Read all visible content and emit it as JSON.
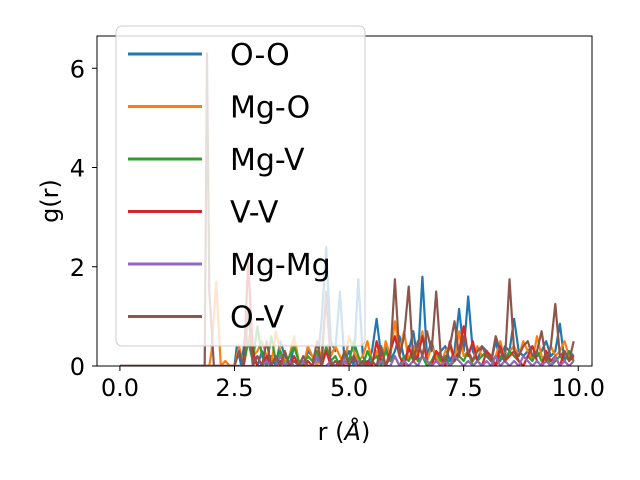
{
  "chart_data": {
    "type": "line",
    "xlabel": "r (",
    "xlabel_unit": "Å",
    "xlabel_close": ")",
    "ylabel": "g(r)",
    "xlim": [
      -0.5,
      10.3
    ],
    "ylim": [
      0,
      6.65
    ],
    "xticks": [
      0.0,
      2.5,
      5.0,
      7.5,
      10.0
    ],
    "xtick_labels": [
      "0.0",
      "2.5",
      "5.0",
      "7.5",
      "10.0"
    ],
    "yticks": [
      0,
      2,
      4,
      6
    ],
    "ytick_labels": [
      "0",
      "2",
      "4",
      "6"
    ],
    "grid": false,
    "legend_placement": "upper-left",
    "series": [
      {
        "name": "O-O",
        "color": "#1f77b4",
        "x": [
          0.0,
          2.5,
          2.55,
          2.65,
          2.8,
          2.9,
          3.0,
          3.1,
          3.2,
          3.3,
          3.4,
          3.5,
          3.6,
          3.7,
          3.8,
          3.9,
          4.0,
          4.1,
          4.2,
          4.3,
          4.4,
          4.5,
          4.6,
          4.7,
          4.8,
          4.9,
          5.0,
          5.1,
          5.2,
          5.3,
          5.4,
          5.5,
          5.6,
          5.7,
          5.8,
          5.9,
          6.0,
          6.1,
          6.2,
          6.3,
          6.4,
          6.5,
          6.6,
          6.7,
          6.8,
          6.9,
          7.0,
          7.1,
          7.2,
          7.3,
          7.4,
          7.5,
          7.6,
          7.7,
          7.8,
          7.9,
          8.0,
          8.1,
          8.2,
          8.3,
          8.4,
          8.5,
          8.6,
          8.7,
          8.8,
          8.9,
          9.0,
          9.1,
          9.2,
          9.3,
          9.4,
          9.5,
          9.6,
          9.7,
          9.8,
          9.9
        ],
        "y": [
          0.0,
          0.0,
          0.4,
          0.0,
          1.1,
          0.2,
          0.0,
          0.3,
          0.0,
          0.2,
          0.0,
          0.5,
          0.2,
          0.0,
          0.4,
          0.1,
          0.0,
          0.3,
          0.2,
          0.0,
          0.9,
          2.4,
          0.5,
          0.3,
          1.5,
          0.1,
          0.3,
          0.0,
          1.75,
          0.2,
          0.0,
          0.3,
          0.95,
          0.2,
          0.4,
          0.1,
          0.3,
          0.6,
          0.15,
          0.3,
          0.7,
          0.1,
          1.8,
          0.2,
          0.5,
          0.1,
          0.3,
          0.4,
          0.1,
          0.3,
          1.15,
          0.3,
          1.4,
          0.3,
          0.1,
          0.4,
          0.3,
          0.1,
          0.5,
          0.1,
          0.4,
          0.3,
          0.95,
          0.3,
          0.2,
          0.3,
          0.4,
          0.2,
          0.3,
          0.5,
          0.2,
          0.3,
          0.85,
          0.1,
          0.3,
          0.2
        ]
      },
      {
        "name": "Mg-O",
        "color": "#ff7f0e",
        "x": [
          0.0,
          1.95,
          2.0,
          2.1,
          2.2,
          2.3,
          2.4,
          2.5,
          2.6,
          2.7,
          2.8,
          2.9,
          3.0,
          3.1,
          3.2,
          3.3,
          3.4,
          3.5,
          3.6,
          3.7,
          3.8,
          3.9,
          4.0,
          4.1,
          4.2,
          4.3,
          4.4,
          4.5,
          4.6,
          4.7,
          4.8,
          4.9,
          5.0,
          5.1,
          5.2,
          5.3,
          5.4,
          5.5,
          5.6,
          5.7,
          5.8,
          5.9,
          6.0,
          6.1,
          6.2,
          6.3,
          6.4,
          6.5,
          6.6,
          6.7,
          6.8,
          6.9,
          7.0,
          7.1,
          7.2,
          7.3,
          7.4,
          7.5,
          7.6,
          7.7,
          7.8,
          7.9,
          8.0,
          8.1,
          8.2,
          8.3,
          8.4,
          8.5,
          8.6,
          8.7,
          8.8,
          8.9,
          9.0,
          9.1,
          9.2,
          9.3,
          9.4,
          9.5,
          9.6,
          9.7,
          9.8,
          9.9
        ],
        "y": [
          0.0,
          0.0,
          0.3,
          1.7,
          0.0,
          0.1,
          0.0,
          0.0,
          0.4,
          0.0,
          0.6,
          0.2,
          0.3,
          0.5,
          0.2,
          0.0,
          0.7,
          0.3,
          0.1,
          0.2,
          0.6,
          0.1,
          0.0,
          0.4,
          0.2,
          0.0,
          0.3,
          1.3,
          0.2,
          0.4,
          0.2,
          0.0,
          0.6,
          0.3,
          0.1,
          0.2,
          0.5,
          0.1,
          0.3,
          0.0,
          0.5,
          0.2,
          0.9,
          0.3,
          0.7,
          0.1,
          0.4,
          0.2,
          0.7,
          0.1,
          0.4,
          0.2,
          0.0,
          0.3,
          0.4,
          0.1,
          0.7,
          0.2,
          0.3,
          0.1,
          0.4,
          0.2,
          0.3,
          0.1,
          0.2,
          0.5,
          0.1,
          0.3,
          0.4,
          0.2,
          0.5,
          0.3,
          0.1,
          0.6,
          0.2,
          0.1,
          0.4,
          0.2,
          0.3,
          0.5,
          0.2,
          0.1
        ]
      },
      {
        "name": "Mg-V",
        "color": "#2ca02c",
        "x": [
          0.0,
          2.7,
          2.8,
          2.9,
          3.0,
          3.1,
          3.2,
          3.3,
          3.4,
          3.5,
          3.6,
          3.7,
          3.8,
          3.9,
          4.0,
          4.1,
          4.2,
          4.3,
          4.4,
          4.5,
          4.6,
          4.7,
          4.8,
          4.9,
          5.0,
          5.1,
          5.2,
          5.3,
          5.4,
          5.5,
          5.6,
          5.7,
          5.8,
          5.9,
          6.0,
          6.1,
          6.2,
          6.3,
          6.4,
          6.5,
          6.6,
          6.7,
          6.8,
          6.9,
          7.0,
          7.1,
          7.2,
          7.3,
          7.4,
          7.5,
          7.6,
          7.7,
          7.8,
          7.9,
          8.0,
          8.1,
          8.2,
          8.3,
          8.4,
          8.5,
          8.6,
          8.7,
          8.8,
          8.9,
          9.0,
          9.1,
          9.2,
          9.3,
          9.4,
          9.5,
          9.6,
          9.7,
          9.8,
          9.9
        ],
        "y": [
          0.0,
          0.0,
          0.5,
          0.1,
          0.8,
          0.2,
          0.0,
          0.6,
          0.1,
          0.3,
          0.0,
          0.2,
          0.4,
          0.1,
          0.0,
          0.2,
          0.1,
          0.3,
          0.0,
          0.4,
          0.1,
          0.2,
          0.0,
          0.3,
          0.1,
          0.5,
          0.2,
          0.0,
          0.3,
          0.1,
          0.2,
          0.0,
          0.3,
          0.1,
          0.2,
          0.0,
          0.2,
          0.1,
          0.3,
          0.1,
          0.2,
          0.0,
          0.1,
          0.3,
          0.1,
          0.2,
          0.0,
          0.1,
          0.2,
          0.1,
          0.3,
          0.0,
          0.1,
          0.2,
          0.3,
          0.1,
          0.0,
          0.2,
          0.1,
          0.3,
          0.2,
          0.1,
          0.0,
          0.2,
          0.1,
          0.3,
          0.1,
          0.2,
          0.0,
          0.1,
          0.2,
          0.1,
          0.3,
          0.1
        ]
      },
      {
        "name": "V-V",
        "color": "#d62728",
        "x": [
          0.0,
          2.7,
          2.8,
          2.9,
          3.0,
          3.1,
          3.2,
          3.3,
          3.4,
          3.5,
          3.6,
          3.7,
          3.8,
          3.9,
          4.0,
          4.1,
          4.2,
          4.3,
          4.4,
          4.5,
          4.6,
          4.7,
          4.8,
          4.9,
          5.0,
          5.1,
          5.2,
          5.3,
          5.4,
          5.5,
          5.6,
          5.7,
          5.8,
          5.9,
          6.0,
          6.1,
          6.2,
          6.3,
          6.4,
          6.5,
          6.6,
          6.7,
          6.8,
          6.9,
          7.0,
          7.1,
          7.2,
          7.3,
          7.4,
          7.5,
          7.6,
          7.7,
          7.8,
          7.9,
          8.0,
          8.1,
          8.2,
          8.3,
          8.4,
          8.5,
          8.6,
          8.7,
          8.8,
          8.9,
          9.0,
          9.1,
          9.2,
          9.3,
          9.4,
          9.5,
          9.6,
          9.7,
          9.8,
          9.9
        ],
        "y": [
          0.0,
          0.0,
          2.1,
          0.3,
          0.0,
          0.0,
          0.2,
          0.0,
          0.0,
          0.1,
          0.0,
          0.0,
          0.2,
          0.0,
          0.0,
          0.1,
          0.0,
          0.0,
          0.0,
          0.3,
          0.0,
          0.0,
          0.1,
          0.0,
          0.0,
          0.2,
          0.0,
          0.0,
          0.1,
          0.0,
          0.5,
          0.1,
          0.0,
          0.3,
          0.6,
          0.2,
          0.0,
          0.4,
          0.1,
          0.2,
          0.6,
          0.1,
          0.0,
          0.3,
          0.2,
          0.0,
          0.5,
          0.1,
          0.3,
          0.8,
          0.2,
          0.5,
          0.1,
          0.0,
          0.3,
          0.2,
          0.0,
          0.4,
          0.1,
          0.2,
          0.3,
          0.1,
          0.0,
          0.2,
          0.4,
          0.1,
          0.0,
          0.3,
          0.1,
          0.2,
          0.0,
          0.3,
          0.1,
          0.2
        ]
      },
      {
        "name": "Mg-Mg",
        "color": "#9467bd",
        "x": [
          0.0,
          2.9,
          3.0,
          3.1,
          3.2,
          3.3,
          3.4,
          3.5,
          3.6,
          3.7,
          3.8,
          3.9,
          4.0,
          4.1,
          4.2,
          4.3,
          4.4,
          4.5,
          4.6,
          4.7,
          4.8,
          4.9,
          5.0,
          5.1,
          5.2,
          5.3,
          5.4,
          5.5,
          5.6,
          5.7,
          5.8,
          5.9,
          6.0,
          6.1,
          6.2,
          6.3,
          6.4,
          6.5,
          6.6,
          6.7,
          6.8,
          6.9,
          7.0,
          7.1,
          7.2,
          7.3,
          7.4,
          7.5,
          7.6,
          7.7,
          7.8,
          7.9,
          8.0,
          8.1,
          8.2,
          8.3,
          8.4,
          8.5,
          8.6,
          8.7,
          8.8,
          8.9,
          9.0,
          9.1,
          9.2,
          9.3,
          9.4,
          9.5,
          9.6,
          9.7,
          9.8,
          9.9
        ],
        "y": [
          0.0,
          0.0,
          0.2,
          0.0,
          0.1,
          0.0,
          0.0,
          0.2,
          0.0,
          0.1,
          0.0,
          0.0,
          0.1,
          0.0,
          0.0,
          0.2,
          0.0,
          0.0,
          0.1,
          0.0,
          0.0,
          0.1,
          0.0,
          0.0,
          0.1,
          0.0,
          0.0,
          0.1,
          0.0,
          0.1,
          0.0,
          0.0,
          0.2,
          0.0,
          0.1,
          0.0,
          0.1,
          0.0,
          0.2,
          0.1,
          0.0,
          0.1,
          0.0,
          0.1,
          0.0,
          0.2,
          0.1,
          0.0,
          0.1,
          0.0,
          0.1,
          0.0,
          0.1,
          0.0,
          0.2,
          0.0,
          0.1,
          0.0,
          0.1,
          0.0,
          0.2,
          0.1,
          0.0,
          0.1,
          0.0,
          0.1,
          0.0,
          0.2,
          0.0,
          0.1,
          0.0,
          0.1
        ]
      },
      {
        "name": "O-V",
        "color": "#8c564b",
        "x": [
          0.0,
          1.75,
          1.85,
          1.9,
          1.95,
          2.05,
          2.1,
          2.2,
          2.3,
          2.4,
          2.5,
          2.6,
          2.7,
          2.8,
          2.9,
          3.0,
          3.1,
          3.2,
          3.3,
          3.4,
          3.5,
          3.6,
          3.7,
          3.8,
          3.9,
          4.0,
          4.1,
          4.2,
          4.3,
          4.4,
          4.5,
          4.6,
          4.7,
          4.8,
          4.9,
          5.0,
          5.1,
          5.2,
          5.3,
          5.4,
          5.5,
          5.6,
          5.7,
          5.8,
          5.9,
          6.0,
          6.1,
          6.2,
          6.3,
          6.4,
          6.5,
          6.6,
          6.7,
          6.8,
          6.9,
          7.0,
          7.1,
          7.2,
          7.3,
          7.4,
          7.5,
          7.6,
          7.7,
          7.8,
          7.9,
          8.0,
          8.1,
          8.2,
          8.3,
          8.4,
          8.5,
          8.6,
          8.7,
          8.8,
          8.9,
          9.0,
          9.1,
          9.2,
          9.3,
          9.4,
          9.5,
          9.6,
          9.7,
          9.8,
          9.9
        ],
        "y": [
          0.0,
          0.0,
          0.0,
          6.3,
          1.5,
          0.0,
          0.0,
          0.0,
          0.0,
          0.0,
          0.0,
          0.3,
          0.0,
          1.1,
          0.0,
          0.2,
          0.0,
          0.5,
          0.0,
          0.2,
          0.0,
          0.3,
          0.0,
          0.1,
          0.0,
          0.2,
          0.0,
          0.0,
          0.5,
          0.0,
          1.5,
          0.0,
          0.1,
          0.0,
          0.3,
          0.0,
          0.2,
          0.0,
          0.1,
          0.0,
          0.1,
          0.0,
          0.4,
          0.0,
          0.2,
          1.75,
          0.2,
          0.6,
          1.6,
          0.1,
          0.5,
          0.2,
          0.7,
          0.3,
          1.5,
          0.2,
          0.1,
          0.4,
          0.9,
          0.2,
          0.6,
          0.3,
          0.1,
          0.3,
          0.4,
          0.2,
          0.1,
          0.6,
          0.3,
          0.1,
          1.75,
          0.3,
          0.2,
          0.4,
          0.5,
          0.2,
          0.3,
          0.7,
          0.1,
          0.4,
          1.25,
          0.2,
          0.3,
          0.1,
          0.5
        ]
      }
    ]
  }
}
